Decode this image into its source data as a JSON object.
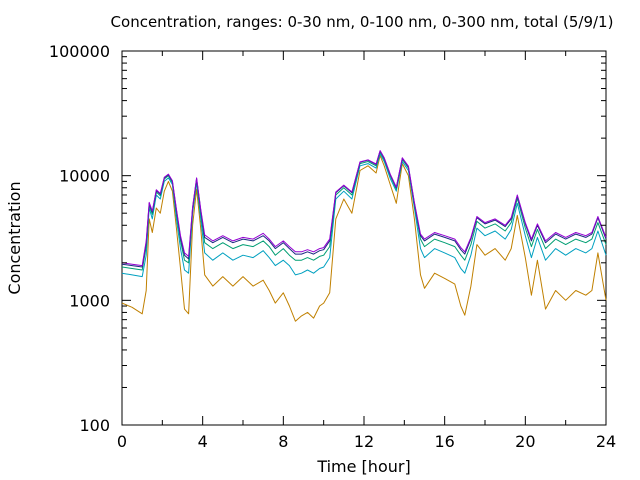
{
  "chart_data": {
    "type": "line",
    "title": "Concentration, ranges: 0-30 nm, 0-100 nm, 0-300 nm, total (5/9/1)",
    "xlabel": "Time [hour]",
    "ylabel": "Concentration",
    "xlim": [
      0,
      24
    ],
    "ylim": [
      100,
      100000
    ],
    "y_scale": "log",
    "grid": false,
    "x_ticks": [
      0,
      4,
      8,
      12,
      16,
      20,
      24
    ],
    "x_tick_labels": [
      "0",
      "4",
      "8",
      "12",
      "16",
      "20",
      "24"
    ],
    "y_ticks": [
      100,
      1000,
      10000,
      100000
    ],
    "y_tick_labels": [
      "100",
      "1000",
      "10000",
      "100000"
    ],
    "series": [
      {
        "color": "#c08000",
        "x": [
          0,
          0.5,
          1.0,
          1.2,
          1.35,
          1.5,
          1.7,
          1.9,
          2.1,
          2.3,
          2.5,
          2.7,
          2.9,
          3.1,
          3.3,
          3.5,
          3.7,
          3.9,
          4.1,
          4.5,
          5.0,
          5.5,
          6.0,
          6.5,
          7.0,
          7.3,
          7.6,
          8.0,
          8.3,
          8.6,
          8.9,
          9.2,
          9.5,
          9.8,
          10.0,
          10.3,
          10.6,
          11.0,
          11.4,
          11.8,
          12.2,
          12.6,
          12.8,
          13.0,
          13.3,
          13.6,
          13.9,
          14.2,
          14.5,
          14.8,
          15.0,
          15.5,
          16.0,
          16.5,
          16.8,
          17.0,
          17.3,
          17.6,
          18.0,
          18.5,
          19.0,
          19.3,
          19.6,
          20.0,
          20.3,
          20.6,
          21.0,
          21.5,
          22.0,
          22.5,
          23.0,
          23.3,
          23.6,
          24.0
        ],
        "y": [
          950,
          880,
          780,
          1200,
          4500,
          3500,
          5500,
          5000,
          7500,
          9000,
          7500,
          3800,
          1800,
          850,
          780,
          4000,
          7800,
          3800,
          1600,
          1300,
          1550,
          1300,
          1550,
          1300,
          1450,
          1200,
          950,
          1150,
          900,
          680,
          750,
          800,
          720,
          900,
          950,
          1150,
          4500,
          6500,
          5000,
          11000,
          12000,
          10500,
          14500,
          12000,
          8500,
          6000,
          12500,
          10000,
          4500,
          1600,
          1250,
          1650,
          1500,
          1350,
          900,
          760,
          1300,
          2800,
          2300,
          2600,
          2100,
          2600,
          4800,
          2200,
          1100,
          2100,
          850,
          1200,
          1000,
          1200,
          1100,
          1200,
          2400,
          1000
        ]
      },
      {
        "color": "#00a0c0",
        "x": [
          0,
          0.5,
          1.0,
          1.2,
          1.35,
          1.5,
          1.7,
          1.9,
          2.1,
          2.3,
          2.5,
          2.7,
          2.9,
          3.1,
          3.3,
          3.5,
          3.7,
          3.9,
          4.1,
          4.5,
          5.0,
          5.5,
          6.0,
          6.5,
          7.0,
          7.3,
          7.6,
          8.0,
          8.3,
          8.6,
          8.9,
          9.2,
          9.5,
          9.8,
          10.0,
          10.3,
          10.6,
          11.0,
          11.4,
          11.8,
          12.2,
          12.6,
          12.8,
          13.0,
          13.3,
          13.6,
          13.9,
          14.2,
          14.5,
          14.8,
          15.0,
          15.5,
          16.0,
          16.5,
          16.8,
          17.0,
          17.3,
          17.6,
          18.0,
          18.5,
          19.0,
          19.3,
          19.6,
          20.0,
          20.3,
          20.6,
          21.0,
          21.5,
          22.0,
          22.5,
          23.0,
          23.3,
          23.6,
          24.0
        ],
        "y": [
          1650,
          1600,
          1550,
          2300,
          5500,
          4500,
          7000,
          6500,
          9000,
          9600,
          8500,
          4500,
          2600,
          1750,
          1650,
          5000,
          8800,
          4500,
          2400,
          2100,
          2400,
          2100,
          2300,
          2200,
          2500,
          2200,
          1900,
          2100,
          1900,
          1600,
          1650,
          1750,
          1650,
          1800,
          1850,
          2200,
          6500,
          7500,
          6500,
          12000,
          12500,
          11500,
          15000,
          13000,
          9500,
          7500,
          13000,
          11000,
          5500,
          2600,
          2200,
          2600,
          2400,
          2200,
          1800,
          1650,
          2300,
          3800,
          3300,
          3600,
          3100,
          3700,
          6000,
          3300,
          2200,
          3200,
          2100,
          2600,
          2300,
          2600,
          2400,
          2600,
          3600,
          2300
        ]
      },
      {
        "color": "#009e73",
        "x": [
          0,
          0.5,
          1.0,
          1.2,
          1.35,
          1.5,
          1.7,
          1.9,
          2.1,
          2.3,
          2.5,
          2.7,
          2.9,
          3.1,
          3.3,
          3.5,
          3.7,
          3.9,
          4.1,
          4.5,
          5.0,
          5.5,
          6.0,
          6.5,
          7.0,
          7.3,
          7.6,
          8.0,
          8.3,
          8.6,
          8.9,
          9.2,
          9.5,
          9.8,
          10.0,
          10.3,
          10.6,
          11.0,
          11.4,
          11.8,
          12.2,
          12.6,
          12.8,
          13.0,
          13.3,
          13.6,
          13.9,
          14.2,
          14.5,
          14.8,
          15.0,
          15.5,
          16.0,
          16.5,
          16.8,
          17.0,
          17.3,
          17.6,
          18.0,
          18.5,
          19.0,
          19.3,
          19.6,
          20.0,
          20.3,
          20.6,
          21.0,
          21.5,
          22.0,
          22.5,
          23.0,
          23.3,
          23.6,
          24.0
        ],
        "y": [
          1850,
          1800,
          1750,
          2700,
          5800,
          4900,
          7400,
          6900,
          9400,
          10000,
          8800,
          5000,
          3000,
          2100,
          2000,
          5300,
          9200,
          5000,
          2900,
          2600,
          2900,
          2600,
          2800,
          2700,
          3000,
          2700,
          2300,
          2600,
          2300,
          2100,
          2100,
          2200,
          2100,
          2250,
          2300,
          2700,
          7000,
          8000,
          7000,
          12500,
          13000,
          12000,
          15500,
          13500,
          10000,
          7800,
          13500,
          11500,
          5800,
          3100,
          2700,
          3100,
          2900,
          2700,
          2300,
          2100,
          2800,
          4300,
          3800,
          4100,
          3600,
          4200,
          6600,
          3800,
          2700,
          3700,
          2600,
          3100,
          2800,
          3100,
          2900,
          3100,
          4200,
          2800
        ]
      },
      {
        "color": "#1a2a80",
        "x": [
          0,
          0.5,
          1.0,
          1.2,
          1.35,
          1.5,
          1.7,
          1.9,
          2.1,
          2.3,
          2.5,
          2.7,
          2.9,
          3.1,
          3.3,
          3.5,
          3.7,
          3.9,
          4.1,
          4.5,
          5.0,
          5.5,
          6.0,
          6.5,
          7.0,
          7.3,
          7.6,
          8.0,
          8.3,
          8.6,
          8.9,
          9.2,
          9.5,
          9.8,
          10.0,
          10.3,
          10.6,
          11.0,
          11.4,
          11.8,
          12.2,
          12.6,
          12.8,
          13.0,
          13.3,
          13.6,
          13.9,
          14.2,
          14.5,
          14.8,
          15.0,
          15.5,
          16.0,
          16.5,
          16.8,
          17.0,
          17.3,
          17.6,
          18.0,
          18.5,
          19.0,
          19.3,
          19.6,
          20.0,
          20.3,
          20.6,
          21.0,
          21.5,
          22.0,
          22.5,
          23.0,
          23.3,
          23.6,
          24.0
        ],
        "y": [
          1950,
          1900,
          1850,
          2900,
          6000,
          5100,
          7600,
          7100,
          9600,
          10200,
          9000,
          5300,
          3200,
          2300,
          2150,
          5500,
          9500,
          5300,
          3200,
          2900,
          3200,
          2900,
          3100,
          3000,
          3300,
          3000,
          2600,
          2900,
          2600,
          2350,
          2350,
          2450,
          2350,
          2500,
          2550,
          3000,
          7300,
          8300,
          7300,
          12800,
          13300,
          12300,
          15800,
          13800,
          10200,
          8000,
          13800,
          11800,
          6000,
          3300,
          3000,
          3400,
          3200,
          3000,
          2550,
          2350,
          3100,
          4600,
          4100,
          4400,
          3900,
          4500,
          6900,
          4100,
          3000,
          4000,
          2900,
          3400,
          3100,
          3400,
          3200,
          3400,
          4600,
          3100
        ]
      },
      {
        "color": "#9400d3",
        "x": [
          0,
          0.5,
          1.0,
          1.2,
          1.35,
          1.5,
          1.7,
          1.9,
          2.1,
          2.3,
          2.5,
          2.7,
          2.9,
          3.1,
          3.3,
          3.5,
          3.7,
          3.9,
          4.1,
          4.5,
          5.0,
          5.5,
          6.0,
          6.5,
          7.0,
          7.3,
          7.6,
          8.0,
          8.3,
          8.6,
          8.9,
          9.2,
          9.5,
          9.8,
          10.0,
          10.3,
          10.6,
          11.0,
          11.4,
          11.8,
          12.2,
          12.6,
          12.8,
          13.0,
          13.3,
          13.6,
          13.9,
          14.2,
          14.5,
          14.8,
          15.0,
          15.5,
          16.0,
          16.5,
          16.8,
          17.0,
          17.3,
          17.6,
          18.0,
          18.5,
          19.0,
          19.3,
          19.6,
          20.0,
          20.3,
          20.6,
          21.0,
          21.5,
          22.0,
          22.5,
          23.0,
          23.3,
          23.6,
          24.0
        ],
        "y": [
          2000,
          1950,
          1900,
          3000,
          6100,
          5200,
          7700,
          7200,
          9700,
          10300,
          9100,
          5400,
          3300,
          2400,
          2250,
          5600,
          9600,
          5400,
          3350,
          3000,
          3300,
          3000,
          3200,
          3100,
          3450,
          3100,
          2700,
          3000,
          2700,
          2450,
          2450,
          2550,
          2450,
          2600,
          2650,
          3100,
          7400,
          8400,
          7400,
          12900,
          13400,
          12400,
          15900,
          13900,
          10300,
          8100,
          13900,
          11900,
          6100,
          3400,
          3100,
          3500,
          3300,
          3100,
          2650,
          2450,
          3200,
          4700,
          4200,
          4500,
          4000,
          4600,
          7000,
          4200,
          3100,
          4100,
          3000,
          3500,
          3200,
          3500,
          3300,
          3500,
          4700,
          3200
        ]
      }
    ]
  }
}
